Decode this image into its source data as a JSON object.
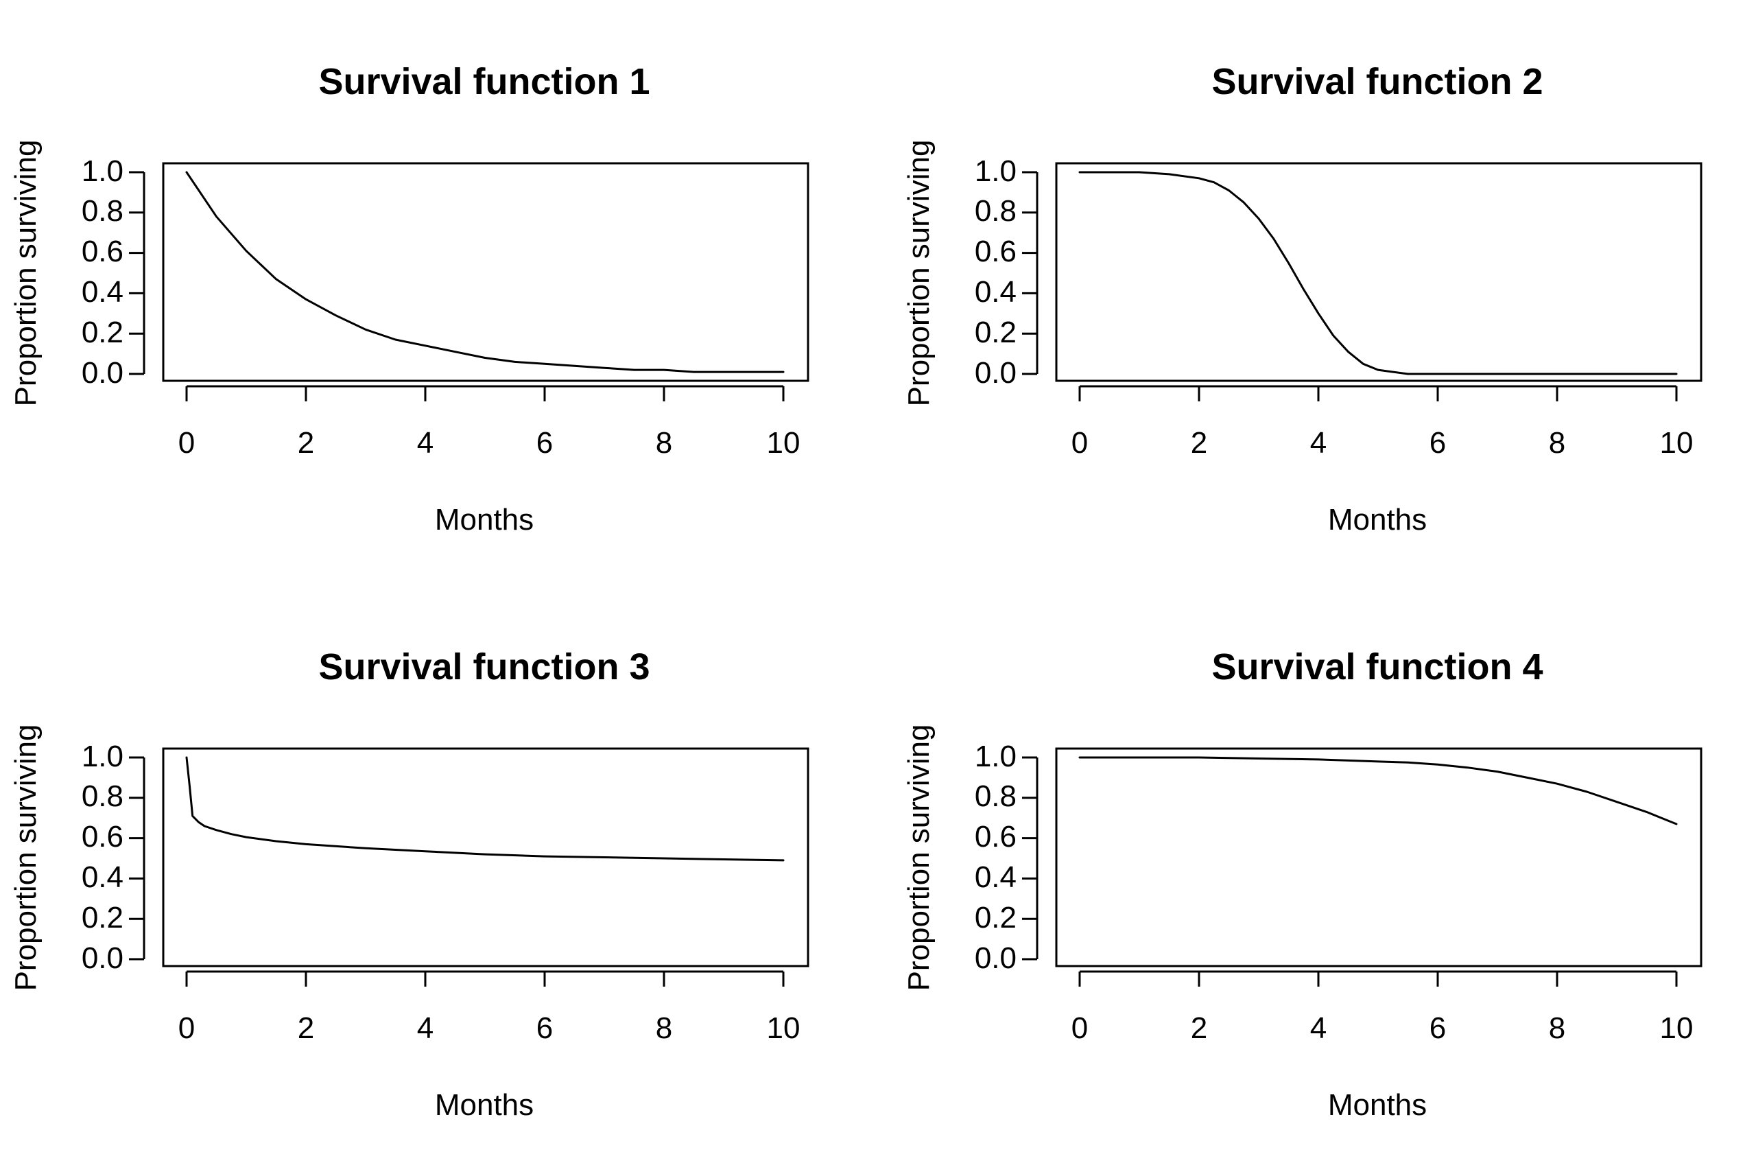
{
  "chart_data": [
    {
      "type": "line",
      "title": "Survival function 1",
      "xlabel": "Months",
      "ylabel": "Proportion surviving",
      "xlim": [
        0,
        10
      ],
      "ylim": [
        0,
        1
      ],
      "xticks": [
        "0",
        "2",
        "4",
        "6",
        "8",
        "10"
      ],
      "yticks": [
        "0.0",
        "0.2",
        "0.4",
        "0.6",
        "0.8",
        "1.0"
      ],
      "grid": false,
      "color": "#000000",
      "series": [
        {
          "x": [
            0,
            0.5,
            1,
            1.5,
            2,
            2.5,
            3,
            3.5,
            4,
            4.5,
            5,
            5.5,
            6,
            6.5,
            7,
            7.5,
            8,
            8.5,
            9,
            9.5,
            10
          ],
          "y": [
            1.0,
            0.78,
            0.61,
            0.47,
            0.37,
            0.29,
            0.22,
            0.17,
            0.14,
            0.11,
            0.08,
            0.06,
            0.05,
            0.04,
            0.03,
            0.02,
            0.02,
            0.01,
            0.01,
            0.01,
            0.01
          ]
        }
      ]
    },
    {
      "type": "line",
      "title": "Survival function 2",
      "xlabel": "Months",
      "ylabel": "Proportion surviving",
      "xlim": [
        0,
        10
      ],
      "ylim": [
        0,
        1
      ],
      "xticks": [
        "0",
        "2",
        "4",
        "6",
        "8",
        "10"
      ],
      "yticks": [
        "0.0",
        "0.2",
        "0.4",
        "0.6",
        "0.8",
        "1.0"
      ],
      "grid": false,
      "color": "#000000",
      "series": [
        {
          "x": [
            0,
            0.5,
            1,
            1.5,
            2,
            2.25,
            2.5,
            2.75,
            3,
            3.25,
            3.5,
            3.75,
            4,
            4.25,
            4.5,
            4.75,
            5,
            5.25,
            5.5,
            6,
            7,
            8,
            9,
            10
          ],
          "y": [
            1.0,
            1.0,
            1.0,
            0.99,
            0.97,
            0.95,
            0.91,
            0.85,
            0.77,
            0.67,
            0.55,
            0.42,
            0.3,
            0.19,
            0.11,
            0.05,
            0.02,
            0.01,
            0.0,
            0.0,
            0.0,
            0.0,
            0.0,
            0.0
          ]
        }
      ]
    },
    {
      "type": "line",
      "title": "Survival function 3",
      "xlabel": "Months",
      "ylabel": "Proportion surviving",
      "xlim": [
        0,
        10
      ],
      "ylim": [
        0,
        1
      ],
      "xticks": [
        "0",
        "2",
        "4",
        "6",
        "8",
        "10"
      ],
      "yticks": [
        "0.0",
        "0.2",
        "0.4",
        "0.6",
        "0.8",
        "1.0"
      ],
      "grid": false,
      "color": "#000000",
      "series": [
        {
          "x": [
            0,
            0.05,
            0.1,
            0.2,
            0.3,
            0.5,
            0.75,
            1,
            1.5,
            2,
            3,
            4,
            5,
            6,
            7,
            8,
            9,
            10
          ],
          "y": [
            1.0,
            0.86,
            0.71,
            0.68,
            0.66,
            0.64,
            0.62,
            0.605,
            0.585,
            0.57,
            0.55,
            0.535,
            0.52,
            0.51,
            0.505,
            0.5,
            0.495,
            0.49
          ]
        }
      ]
    },
    {
      "type": "line",
      "title": "Survival function 4",
      "xlabel": "Months",
      "ylabel": "Proportion surviving",
      "xlim": [
        0,
        10
      ],
      "ylim": [
        0,
        1
      ],
      "xticks": [
        "0",
        "2",
        "4",
        "6",
        "8",
        "10"
      ],
      "yticks": [
        "0.0",
        "0.2",
        "0.4",
        "0.6",
        "0.8",
        "1.0"
      ],
      "grid": false,
      "color": "#000000",
      "series": [
        {
          "x": [
            0,
            1,
            2,
            3,
            4,
            5,
            5.5,
            6,
            6.5,
            7,
            7.5,
            8,
            8.5,
            9,
            9.5,
            10
          ],
          "y": [
            1.0,
            1.0,
            1.0,
            0.995,
            0.99,
            0.98,
            0.975,
            0.965,
            0.95,
            0.93,
            0.9,
            0.87,
            0.83,
            0.78,
            0.73,
            0.67
          ]
        }
      ]
    }
  ]
}
